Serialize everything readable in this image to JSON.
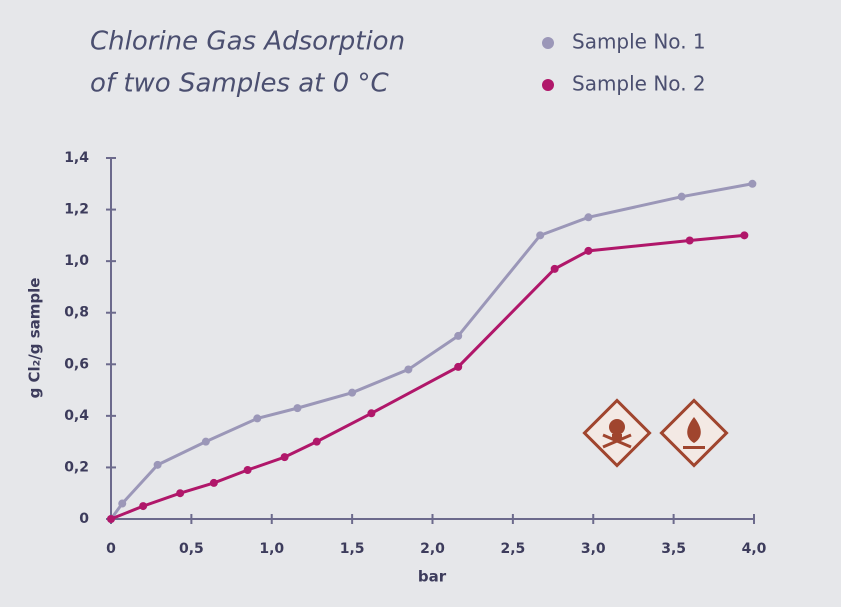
{
  "chart_data": {
    "type": "line",
    "title": [
      "Chlorine Gas Adsorption",
      "of two Samples at 0 °C"
    ],
    "x_label": "bar",
    "y_label": "g Cl₂/g sample",
    "xlim": [
      0,
      4.0
    ],
    "xticks": [
      0,
      {
        "value": 0.5,
        "label": "0,5"
      },
      {
        "value": 1.0,
        "label": "1,0"
      },
      {
        "value": 1.5,
        "label": "1,5"
      },
      {
        "value": 2.0,
        "label": "2,0"
      },
      {
        "value": 2.5,
        "label": "2,5"
      },
      {
        "value": 3.0,
        "label": "3,0"
      },
      {
        "value": 3.5,
        "label": "3,5"
      },
      {
        "value": 4.0,
        "label": "4,0"
      }
    ],
    "ylim": [
      0,
      1.4
    ],
    "yticks": [
      0,
      {
        "value": 0.2,
        "label": "0,2"
      },
      {
        "value": 0.4,
        "label": "0,4"
      },
      {
        "value": 0.6,
        "label": "0,6"
      },
      {
        "value": 0.8,
        "label": "0,8"
      },
      {
        "value": 1.0,
        "label": "1,0"
      },
      {
        "value": 1.2,
        "label": "1,2"
      },
      {
        "value": 1.4,
        "label": "1,4"
      }
    ],
    "series": [
      {
        "name": "Sample No. 1",
        "color": "#9b97b8",
        "x": [
          0,
          0.07,
          0.29,
          0.59,
          0.91,
          1.16,
          1.5,
          1.85,
          2.16,
          2.67,
          2.97,
          3.55,
          3.99
        ],
        "values": [
          0,
          0.06,
          0.21,
          0.3,
          0.39,
          0.43,
          0.49,
          0.58,
          0.71,
          1.1,
          1.17,
          1.25,
          1.3
        ]
      },
      {
        "name": "Sample No. 2",
        "color": "#b0176a",
        "x": [
          0,
          0.2,
          0.43,
          0.64,
          0.85,
          1.08,
          1.28,
          1.62,
          2.16,
          2.76,
          2.97,
          3.6,
          3.94
        ],
        "values": [
          0,
          0.05,
          0.1,
          0.14,
          0.19,
          0.24,
          0.3,
          0.41,
          0.59,
          0.97,
          1.04,
          1.08,
          1.1
        ]
      }
    ]
  }
}
